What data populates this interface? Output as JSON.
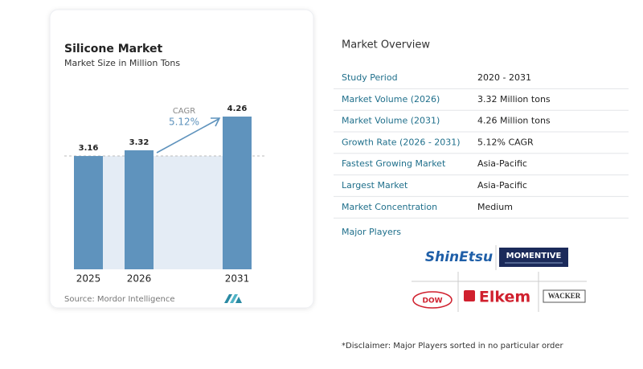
{
  "chart_data": {
    "type": "bar",
    "title": "Silicone Market",
    "subtitle": "Market Size in Million Tons",
    "categories": [
      "2025",
      "2026",
      "2031"
    ],
    "values": [
      3.16,
      3.32,
      4.26
    ],
    "color": "#5f93bd",
    "annotation": {
      "label": "CAGR",
      "value": "5.12%"
    },
    "source": "Source:  Mordor Intelligence"
  },
  "overview": {
    "title": "Market Overview",
    "rows": [
      [
        "Study Period",
        "2020 - 2031"
      ],
      [
        "Market Volume (2026)",
        "3.32 Million tons"
      ],
      [
        "Market Volume (2031)",
        "4.26 Million tons"
      ],
      [
        "Growth Rate (2026 - 2031)",
        "5.12% CAGR"
      ],
      [
        "Fastest Growing Market",
        "Asia-Pacific"
      ],
      [
        "Largest Market",
        "Asia-Pacific"
      ],
      [
        "Market Concentration",
        "Medium"
      ]
    ],
    "players_title": "Major Players",
    "players": [
      "ShinEtsu",
      "MOMENTIVE",
      "DOW",
      "Elkem",
      "WACKER"
    ],
    "disclaimer": "*Disclaimer: Major Players sorted in no particular order"
  }
}
